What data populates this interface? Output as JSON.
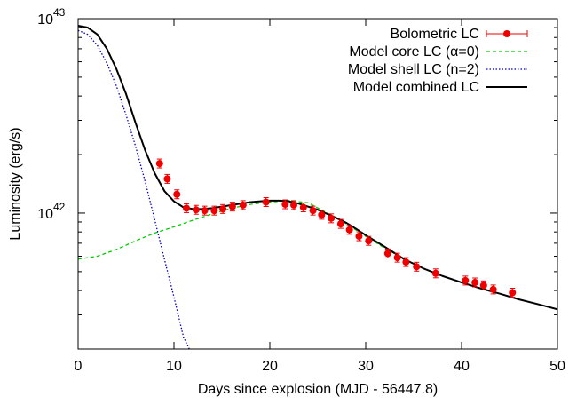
{
  "chart_data": {
    "type": "scatter",
    "xlabel": "Days since explosion (MJD - 56447.8)",
    "ylabel": "Luminosity (erg/s)",
    "xlim": [
      0,
      50
    ],
    "ylim": [
      2e+41,
      1e+43
    ],
    "yscale": "log",
    "x_ticks": [
      "0",
      "10",
      "20",
      "30",
      "40",
      "50"
    ],
    "y_tick_bases": [
      "10",
      "10"
    ],
    "y_tick_exponents": [
      "43",
      "42"
    ],
    "y_tick_values": [
      1e+43,
      1e+42
    ],
    "grid": false,
    "legend_position": "top-right",
    "series": [
      {
        "name": "Bolometric LC",
        "kind": "points",
        "color": "#ee0000",
        "x": [
          8.5,
          9.3,
          10.3,
          11.3,
          12.3,
          13.2,
          14.2,
          15.1,
          16.1,
          17.2,
          19.6,
          21.6,
          22.5,
          23.5,
          24.5,
          25.4,
          26.4,
          27.4,
          28.3,
          29.3,
          30.3,
          32.3,
          33.3,
          34.2,
          35.3,
          37.3,
          40.4,
          41.4,
          42.3,
          43.3,
          45.3
        ],
        "y": [
          1.8e+42,
          1.5e+42,
          1.25e+42,
          1.06e+42,
          1.04e+42,
          1.03e+42,
          1.03e+42,
          1.05e+42,
          1.08e+42,
          1.1e+42,
          1.14e+42,
          1.11e+42,
          1.1e+42,
          1.07e+42,
          1.03e+42,
          9.8e+41,
          9.4e+41,
          8.8e+41,
          8.2e+41,
          7.6e+41,
          7.2e+41,
          6.2e+41,
          5.9e+41,
          5.6e+41,
          5.3e+41,
          4.9e+41,
          4.5e+41,
          4.4e+41,
          4.25e+41,
          4.05e+41,
          3.9e+41
        ]
      },
      {
        "name": "Model core LC (α=0)",
        "kind": "line",
        "dash": "dashed",
        "color": "#00cc00",
        "x": [
          0,
          2,
          4,
          6,
          8,
          10,
          12,
          14,
          16,
          18,
          20,
          22,
          24,
          26,
          28,
          30,
          32,
          34,
          36,
          38,
          40,
          42,
          44,
          46,
          48,
          50
        ],
        "y": [
          5.8e+41,
          6e+41,
          6.5e+41,
          7.2e+41,
          7.9e+41,
          8.5e+41,
          9.2e+41,
          9.9e+41,
          1.06e+42,
          1.11e+42,
          1.14e+42,
          1.16e+42,
          1.13e+42,
          1e+42,
          8.8e+41,
          7.6e+41,
          6.6e+41,
          5.8e+41,
          5.2e+41,
          4.75e+41,
          4.4e+41,
          4.1e+41,
          3.85e+41,
          3.6e+41,
          3.4e+41,
          3.2e+41
        ]
      },
      {
        "name": "Model shell LC (n=2)",
        "kind": "line",
        "dash": "dotted",
        "color": "#0000bb",
        "x": [
          0,
          1,
          2,
          3,
          4,
          5,
          6,
          7,
          8,
          9,
          10,
          11,
          11.6
        ],
        "y": [
          8.7e+42,
          8.3e+42,
          7.3e+42,
          5.9e+42,
          4.5e+42,
          3.2e+42,
          2.2e+42,
          1.45e+42,
          9.2e+41,
          5.8e+41,
          3.7e+41,
          2.3e+41,
          2e+41
        ]
      },
      {
        "name": "Model combined LC",
        "kind": "line",
        "dash": "solid",
        "color": "#000000",
        "x": [
          0,
          1,
          2,
          3,
          4,
          5,
          6,
          7,
          8,
          9,
          10,
          11,
          12,
          13,
          14,
          15,
          16,
          17,
          18,
          19,
          20,
          21,
          22,
          23,
          24,
          25,
          26,
          27,
          28,
          29,
          30,
          32,
          34,
          36,
          38,
          40,
          42,
          44,
          46,
          48,
          50
        ],
        "y": [
          9.2e+42,
          9e+42,
          8.3e+42,
          7e+42,
          5.5e+42,
          4.1e+42,
          2.9e+42,
          2.1e+42,
          1.6e+42,
          1.3e+42,
          1.15e+42,
          1.07e+42,
          1.05e+42,
          1.05e+42,
          1.06e+42,
          1.08e+42,
          1.1e+42,
          1.12e+42,
          1.14e+42,
          1.15e+42,
          1.16e+42,
          1.16e+42,
          1.15e+42,
          1.12e+42,
          1.08e+42,
          1.04e+42,
          9.9e+41,
          9.4e+41,
          8.9e+41,
          8.3e+41,
          7.7e+41,
          6.7e+41,
          5.8e+41,
          5.2e+41,
          4.75e+41,
          4.4e+41,
          4.1e+41,
          3.85e+41,
          3.6e+41,
          3.4e+41,
          3.2e+41
        ]
      }
    ]
  }
}
